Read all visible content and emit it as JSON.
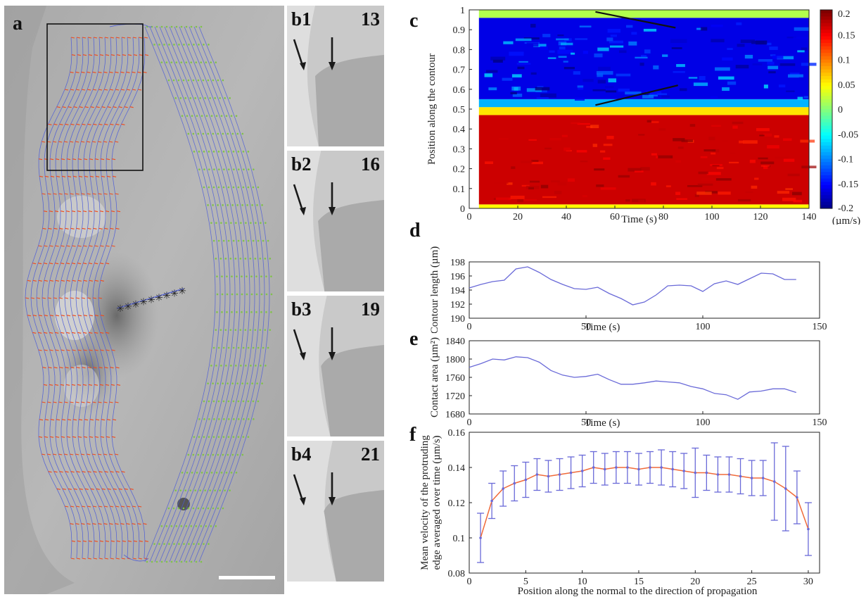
{
  "panel_labels": {
    "a": "a",
    "c": "c",
    "d": "d",
    "e": "e",
    "f": "f"
  },
  "frames": [
    {
      "label": "b1",
      "number": "13",
      "edge_shift": 0.0
    },
    {
      "label": "b2",
      "number": "16",
      "edge_shift": 0.06
    },
    {
      "label": "b3",
      "number": "19",
      "edge_shift": 0.12
    },
    {
      "label": "b4",
      "number": "21",
      "edge_shift": 0.18
    }
  ],
  "colors": {
    "protrusion_vectors": "#f04a1a",
    "retraction_vectors": "#7fc24a",
    "contour_mesh": "#4a5ad8",
    "line_plot": "#6a6ad8",
    "error_bars": "#6a6ad8",
    "mean_line": "#f06a3a"
  },
  "chart_data": [
    {
      "id": "c",
      "type": "heatmap",
      "xlabel": "Time (s)",
      "ylabel": "Position along the contour",
      "xlim": [
        0,
        140
      ],
      "ylim": [
        0,
        1
      ],
      "x_ticks": [
        0,
        20,
        40,
        60,
        80,
        100,
        120,
        140
      ],
      "y_ticks": [
        0,
        0.1,
        0.2,
        0.3,
        0.4,
        0.5,
        0.6,
        0.7,
        0.8,
        0.9,
        1
      ],
      "colorbar": {
        "ticks": [
          0.2,
          0.15,
          0.1,
          0.05,
          0,
          -0.05,
          -0.1,
          -0.15,
          -0.2
        ],
        "range": [
          -0.2,
          0.2
        ],
        "unit": "(µm/s)"
      },
      "regions": [
        {
          "y_from": 0.0,
          "y_to": 0.02,
          "value": 0.05
        },
        {
          "y_from": 0.02,
          "y_to": 0.47,
          "value": 0.17
        },
        {
          "y_from": 0.47,
          "y_to": 0.51,
          "value": 0.06
        },
        {
          "y_from": 0.51,
          "y_to": 0.55,
          "value": -0.08
        },
        {
          "y_from": 0.55,
          "y_to": 0.96,
          "value": -0.16
        },
        {
          "y_from": 0.96,
          "y_to": 1.0,
          "value": 0.02
        }
      ],
      "annotation_lines": [
        {
          "x": [
            52,
            85
          ],
          "y": [
            0.99,
            0.91
          ]
        },
        {
          "x": [
            52,
            86
          ],
          "y": [
            0.52,
            0.62
          ]
        }
      ]
    },
    {
      "id": "d",
      "type": "line",
      "xlabel": "Time (s)",
      "ylabel": "Contour length (µm)",
      "xlim": [
        0,
        150
      ],
      "ylim": [
        190,
        198
      ],
      "x_ticks": [
        0,
        50,
        100,
        150
      ],
      "y_ticks": [
        190,
        192,
        194,
        196,
        198
      ],
      "x": [
        0,
        5,
        10,
        15,
        20,
        25,
        30,
        35,
        40,
        45,
        50,
        55,
        60,
        65,
        70,
        75,
        80,
        85,
        90,
        95,
        100,
        105,
        110,
        115,
        120,
        125,
        130,
        135,
        140
      ],
      "y": [
        194.3,
        194.8,
        195.2,
        195.4,
        197.0,
        197.3,
        196.5,
        195.5,
        194.8,
        194.2,
        194.1,
        194.4,
        193.5,
        192.8,
        191.9,
        192.3,
        193.3,
        194.6,
        194.7,
        194.6,
        193.8,
        194.9,
        195.3,
        194.8,
        195.6,
        196.4,
        196.3,
        195.5,
        195.5
      ]
    },
    {
      "id": "e",
      "type": "line",
      "xlabel": "Time (s)",
      "ylabel": "Contact area (µm²)",
      "xlim": [
        0,
        150
      ],
      "ylim": [
        1680,
        1840
      ],
      "x_ticks": [
        0,
        50,
        100,
        150
      ],
      "y_ticks": [
        1680,
        1720,
        1760,
        1800,
        1840
      ],
      "x": [
        0,
        5,
        10,
        15,
        20,
        25,
        30,
        35,
        40,
        45,
        50,
        55,
        60,
        65,
        70,
        75,
        80,
        85,
        90,
        95,
        100,
        105,
        110,
        115,
        120,
        125,
        130,
        135,
        140
      ],
      "y": [
        1782,
        1790,
        1800,
        1798,
        1805,
        1803,
        1793,
        1775,
        1765,
        1760,
        1762,
        1767,
        1755,
        1745,
        1745,
        1748,
        1752,
        1750,
        1748,
        1740,
        1735,
        1725,
        1722,
        1712,
        1728,
        1730,
        1735,
        1735,
        1727
      ]
    },
    {
      "id": "f",
      "type": "line",
      "xlabel": "Position along the normal to the direction of propagation",
      "ylabel": "Mean velocity of the protruding edge averaged over time (µm/s)",
      "xlim": [
        0,
        31
      ],
      "ylim": [
        0.08,
        0.16
      ],
      "x_ticks": [
        0,
        5,
        10,
        15,
        20,
        25,
        30
      ],
      "y_ticks": [
        0.08,
        0.1,
        0.12,
        0.14,
        0.16
      ],
      "x": [
        1,
        2,
        3,
        4,
        5,
        6,
        7,
        8,
        9,
        10,
        11,
        12,
        13,
        14,
        15,
        16,
        17,
        18,
        19,
        20,
        21,
        22,
        23,
        24,
        25,
        26,
        27,
        28,
        29,
        30
      ],
      "y": [
        0.1,
        0.121,
        0.128,
        0.131,
        0.133,
        0.136,
        0.135,
        0.136,
        0.137,
        0.138,
        0.14,
        0.139,
        0.14,
        0.14,
        0.139,
        0.14,
        0.14,
        0.139,
        0.138,
        0.137,
        0.137,
        0.136,
        0.136,
        0.135,
        0.134,
        0.134,
        0.132,
        0.128,
        0.123,
        0.105
      ],
      "err": [
        0.014,
        0.01,
        0.01,
        0.01,
        0.01,
        0.009,
        0.009,
        0.009,
        0.009,
        0.009,
        0.009,
        0.009,
        0.009,
        0.009,
        0.009,
        0.009,
        0.01,
        0.01,
        0.01,
        0.014,
        0.01,
        0.01,
        0.01,
        0.01,
        0.01,
        0.01,
        0.022,
        0.024,
        0.015,
        0.015
      ]
    }
  ]
}
